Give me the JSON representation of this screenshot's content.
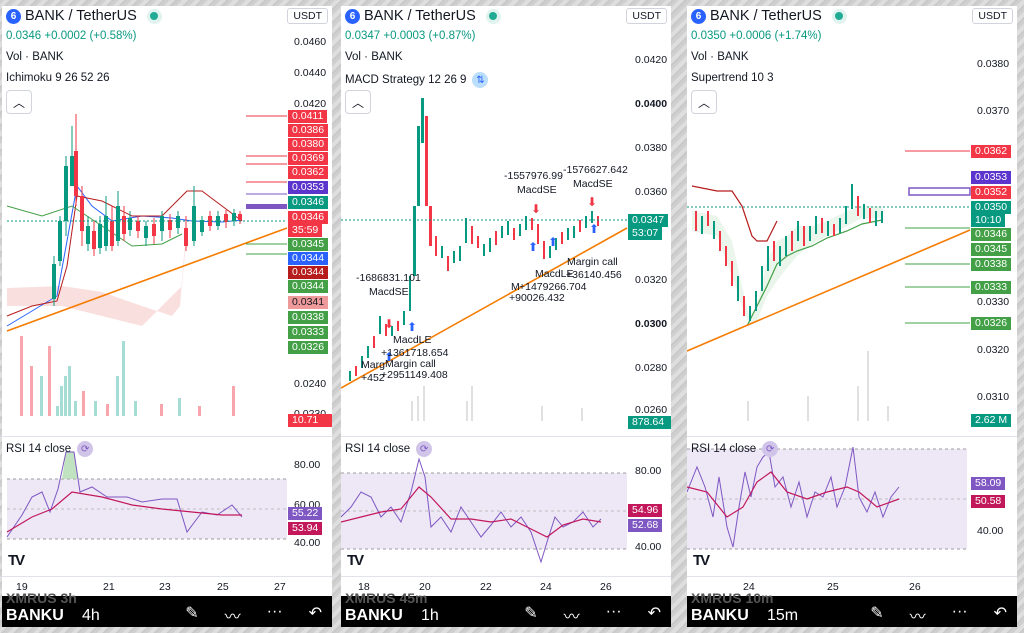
{
  "panels": [
    {
      "symbol": "BANK / TetherUS",
      "coin_letter": "6",
      "currency": "USDT",
      "last": "0.0346",
      "change": "+0.0002 (+0.58%)",
      "vol_label": "Vol · BANK",
      "indicator": "Ichimoku 9 26 52 26",
      "rsi_label": "RSI 14 close",
      "price_labels": [
        "0.0460",
        "0.0440",
        "0.0420",
        "0.0240",
        "0.0230"
      ],
      "tags": [
        "0.0411",
        "0.0386",
        "0.0380",
        "0.0369",
        "0.0362",
        "0.0353",
        "0.0346",
        "0.0346",
        "35:59",
        "0.0345",
        "0.0344",
        "0.0344",
        "0.0344",
        "0.0341",
        "0.0338",
        "0.0333",
        "0.0326",
        "10.71 M"
      ],
      "rsi_levels": [
        "80.00",
        "60.00",
        "40.00"
      ],
      "rsi_tags": [
        "55.22",
        "53.94"
      ],
      "x_labels": [
        "19",
        "21",
        "23",
        "25",
        "27"
      ],
      "ghost": "XMRUS 3h",
      "bottom_symbol": "BANKU",
      "timeframe": "4h"
    },
    {
      "symbol": "BANK / TetherUS",
      "coin_letter": "6",
      "currency": "USDT",
      "last": "0.0347",
      "change": "+0.0003 (+0.87%)",
      "vol_label": "Vol · BANK",
      "indicator": "MACD Strategy 12 26 9",
      "rsi_label": "RSI 14 close",
      "price_labels": [
        "0.0420",
        "0.0400",
        "0.0380",
        "0.0360",
        "0.0320",
        "0.0300",
        "0.0280",
        "0.0260"
      ],
      "tags": [
        "0.0347",
        "53:07",
        "878.64 K"
      ],
      "annotations": [
        "-1686831.101",
        "MacdSE",
        "MacdLE",
        "+1361718.654",
        "Margin call",
        "+2951149.408",
        "Marg",
        "+452",
        "-1557976.99",
        "MacdSE",
        "-1576627.642",
        "MacdSE",
        "Margin call",
        "+36140.456",
        "MacdLE",
        "+1479266.704",
        "M",
        "+90026.432"
      ],
      "rsi_levels": [
        "80.00",
        "40.00"
      ],
      "rsi_tags": [
        "54.96",
        "52.68"
      ],
      "x_labels": [
        "18",
        "20",
        "22",
        "24",
        "26"
      ],
      "ghost": "XMRUS 45m",
      "bottom_symbol": "BANKU",
      "timeframe": "1h"
    },
    {
      "symbol": "BANK / TetherUS",
      "coin_letter": "6",
      "currency": "USDT",
      "last": "0.0350",
      "change": "+0.0006 (+1.74%)",
      "vol_label": "Vol · BANK",
      "indicator": "Supertrend 10 3",
      "rsi_label": "RSI 14 close",
      "price_labels": [
        "0.0380",
        "0.0370",
        "0.0330",
        "0.0320",
        "0.0310"
      ],
      "tags": [
        "0.0362",
        "0.0353",
        "0.0352",
        "0.0350",
        "10:10",
        "0.0346",
        "0.0345",
        "0.0338",
        "0.0333",
        "0.0326",
        "2.62 M"
      ],
      "rsi_levels": [
        "40.00"
      ],
      "rsi_tags": [
        "58.09",
        "50.58"
      ],
      "x_labels": [
        "24",
        "25",
        "26"
      ],
      "ghost": "XMRUS 10m",
      "bottom_symbol": "BANKU",
      "timeframe": "15m"
    }
  ],
  "colors": {
    "up": "#089981",
    "down": "#f23645",
    "trend": "#f57c00",
    "purple": "#7e57c2",
    "magenta": "#c2185b"
  }
}
